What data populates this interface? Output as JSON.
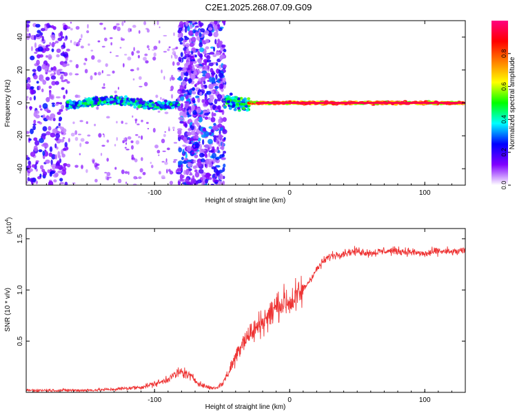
{
  "figure": {
    "title": "C2E1.2025.268.07.09.G09"
  },
  "chart_data": [
    {
      "type": "heatmap",
      "xlabel": "Height of straight line (km)",
      "ylabel": "Frequency (Hz)",
      "xlim": [
        -195,
        130
      ],
      "ylim": [
        -50,
        50
      ],
      "x_ticks": [
        -100,
        0,
        100
      ],
      "y_ticks": [
        -40,
        -20,
        0,
        20,
        40
      ],
      "grid": false,
      "colorbar": {
        "label": "Normalized spectral amplitude",
        "range": [
          0,
          1
        ],
        "ticks": [
          0.0,
          0.2,
          0.4,
          0.6,
          0.8
        ],
        "tick_labels": [
          "0.0",
          "0.2",
          "0.4",
          "0.6",
          "0.8"
        ],
        "colors": [
          "#ffffff",
          "#8000ff",
          "#0000ff",
          "#00ffff",
          "#00ff00",
          "#ffff00",
          "#ff8000",
          "#ff0000",
          "#ff0080"
        ]
      },
      "regions": [
        {
          "x": [
            -195,
            -165
          ],
          "feature": "broadband noise",
          "amplitude": 0.15
        },
        {
          "x": [
            -165,
            -82
          ],
          "feature": "signal band near 0 Hz with sparse noise",
          "amplitude": 0.35
        },
        {
          "x": [
            -82,
            -48
          ],
          "feature": "dense broadband noise",
          "amplitude": 0.2
        },
        {
          "x": [
            -48,
            -30
          ],
          "feature": "transition, noisy signal",
          "amplitude": 0.4
        },
        {
          "x": [
            -30,
            130
          ],
          "feature": "strong narrow signal at 0 Hz",
          "amplitude": 0.95
        }
      ]
    },
    {
      "type": "line",
      "xlabel": "Height of straight line (km)",
      "ylabel": "SNR (10 * v/v)",
      "y_multiplier": "(x10",
      "y_multiplier_exp": "4",
      "y_multiplier_close": ")",
      "xlim": [
        -195,
        130
      ],
      "ylim": [
        0,
        1.6
      ],
      "x_ticks": [
        -100,
        0,
        100
      ],
      "y_ticks": [
        0.5,
        1.0,
        1.5
      ],
      "y_tick_labels": [
        "0.5",
        "1.0",
        "1.5"
      ],
      "grid": false,
      "line_color": "#ee3333",
      "series": [
        {
          "x": [
            -195,
            -170,
            -150,
            -130,
            -110,
            -95,
            -85,
            -80,
            -75,
            -70,
            -65,
            -60,
            -55,
            -50,
            -45,
            -40,
            -35,
            -30,
            -25,
            -20,
            -15,
            -10,
            -5,
            0,
            5,
            10,
            15,
            20,
            25,
            30,
            40,
            50,
            60,
            70,
            80,
            90,
            100,
            110,
            120,
            130
          ],
          "values": [
            0.02,
            0.02,
            0.02,
            0.03,
            0.05,
            0.1,
            0.17,
            0.2,
            0.17,
            0.12,
            0.07,
            0.05,
            0.04,
            0.08,
            0.2,
            0.35,
            0.5,
            0.56,
            0.62,
            0.7,
            0.75,
            0.84,
            0.88,
            0.88,
            0.92,
            1.0,
            1.1,
            1.2,
            1.28,
            1.33,
            1.36,
            1.38,
            1.36,
            1.38,
            1.38,
            1.37,
            1.35,
            1.38,
            1.37,
            1.38
          ]
        }
      ]
    }
  ]
}
